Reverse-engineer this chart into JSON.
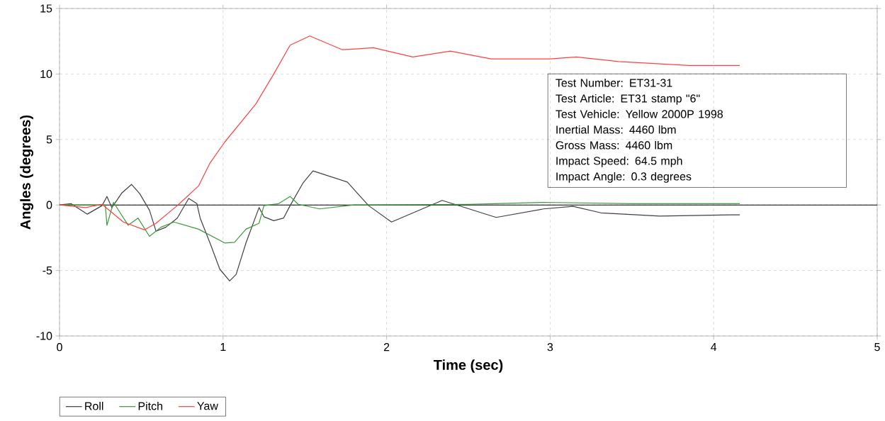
{
  "chart_data": {
    "type": "line",
    "xlabel": "Time (sec)",
    "ylabel": "Angles (degrees)",
    "xlim": [
      0,
      5
    ],
    "ylim": [
      -10,
      15
    ],
    "xticks": [
      0,
      1,
      2,
      3,
      4,
      5
    ],
    "yticks": [
      -10,
      -5,
      0,
      5,
      10,
      15
    ],
    "grid": true,
    "legend": "bottom left",
    "ref_lines": [
      {
        "axis": "y",
        "value": 0,
        "color": "#000000"
      }
    ],
    "annotations": [
      "Test Number: ET31-31",
      "Test Article: ET31 stamp \"6\"",
      "Test Vehicle: Yellow 2000P 1998",
      "Inertial Mass: 4460 lbm",
      "Gross Mass: 4460 lbm",
      "Impact Speed: 64.5 mph",
      "Impact Angle: 0.3 degrees"
    ],
    "series": [
      {
        "name": "Roll",
        "color": "#404040",
        "x": [
          0,
          0.07,
          0.17,
          0.26,
          0.29,
          0.32,
          0.38,
          0.44,
          0.49,
          0.55,
          0.59,
          0.65,
          0.72,
          0.79,
          0.84,
          0.86,
          0.92,
          0.98,
          1.04,
          1.08,
          1.14,
          1.22,
          1.25,
          1.31,
          1.37,
          1.41,
          1.49,
          1.55,
          1.76,
          1.89,
          2.03,
          2.34,
          2.67,
          2.96,
          3.14,
          3.31,
          3.67,
          4.11,
          4.16
        ],
        "values": [
          0,
          0.1,
          -0.7,
          -0.05,
          0.65,
          -0.2,
          0.9,
          1.57,
          0.87,
          -0.4,
          -2.0,
          -1.7,
          -1.0,
          0.5,
          0.1,
          -1.0,
          -2.9,
          -4.9,
          -5.8,
          -5.3,
          -2.9,
          -0.2,
          -0.9,
          -1.2,
          -1.0,
          -0.05,
          1.7,
          2.6,
          1.75,
          -0.05,
          -1.3,
          0.35,
          -0.95,
          -0.3,
          -0.1,
          -0.6,
          -0.85,
          -0.75,
          -0.75
        ]
      },
      {
        "name": "Pitch",
        "color": "#3a9a3a",
        "x": [
          0,
          0.28,
          0.29,
          0.33,
          0.42,
          0.48,
          0.55,
          0.62,
          0.7,
          0.85,
          1.01,
          1.07,
          1.14,
          1.22,
          1.25,
          1.34,
          1.41,
          1.46,
          1.59,
          1.8,
          2.5,
          2.96,
          3.5,
          4.16
        ],
        "values": [
          0,
          0,
          -1.55,
          0.2,
          -1.55,
          -1.0,
          -2.4,
          -1.7,
          -1.3,
          -1.85,
          -2.9,
          -2.85,
          -1.85,
          -1.4,
          -0.05,
          0.1,
          0.65,
          0.05,
          -0.3,
          0,
          0.05,
          0.2,
          0.1,
          0.1
        ]
      },
      {
        "name": "Yaw",
        "color": "#ff4040",
        "x": [
          0,
          0.16,
          0.26,
          0.39,
          0.52,
          0.59,
          0.72,
          0.85,
          0.92,
          1.01,
          1.2,
          1.31,
          1.41,
          1.53,
          1.73,
          1.92,
          2.16,
          2.39,
          2.64,
          3.0,
          3.16,
          3.42,
          3.85,
          4.16
        ],
        "values": [
          0,
          -0.2,
          0.05,
          -1.3,
          -1.9,
          -1.4,
          -0.05,
          1.45,
          3.2,
          4.8,
          7.7,
          10.0,
          12.2,
          12.9,
          11.85,
          12.0,
          11.3,
          11.75,
          11.15,
          11.15,
          11.3,
          10.95,
          10.65,
          10.65
        ]
      }
    ]
  }
}
